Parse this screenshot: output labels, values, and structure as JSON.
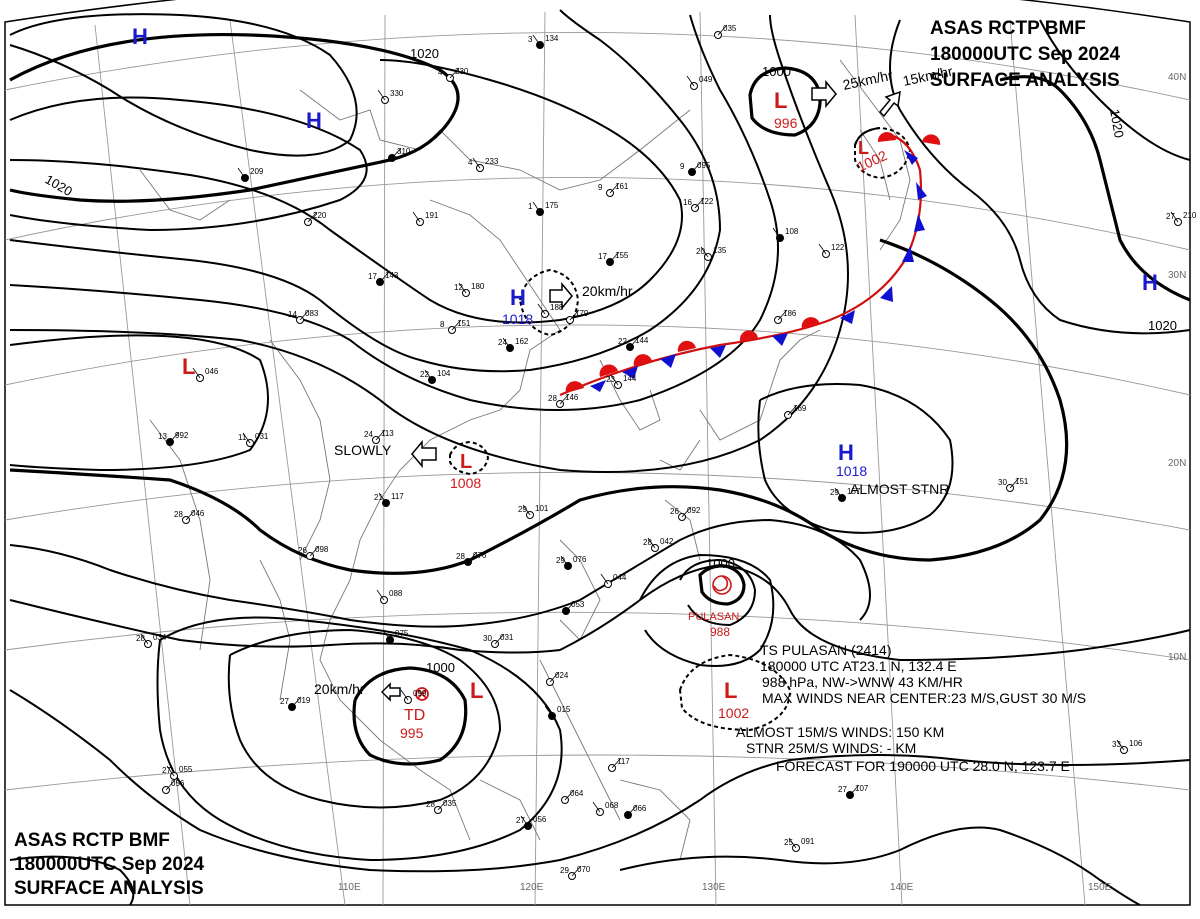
{
  "header_top_right": {
    "line1": "ASAS     RCTP     BMF",
    "line2": "180000UTC     Sep     2024",
    "line3": "SURFACE  ANALYSIS"
  },
  "header_bottom_left": {
    "line1": "ASAS     RCTP     BMF",
    "line2": "180000UTC     Sep     2024",
    "line3": "SURFACE  ANALYSIS"
  },
  "longitude_labels": [
    "110E",
    "120E",
    "130E",
    "140E",
    "150E"
  ],
  "latitude_labels": [
    "40N",
    "30N",
    "20N",
    "10N"
  ],
  "isobar_labels": [
    "1020",
    "1020",
    "1020",
    "1020",
    "1000",
    "1000",
    "1000"
  ],
  "pressure_systems": [
    {
      "type": "H",
      "color": "#1a1acc"
    },
    {
      "type": "H",
      "color": "#1a1acc"
    },
    {
      "type": "H",
      "color": "#1a1acc",
      "value": "1018",
      "motion": "20km/hr"
    },
    {
      "type": "H",
      "color": "#1a1acc",
      "value": "1018",
      "note": "ALMOST STNR"
    },
    {
      "type": "H",
      "color": "#1a1acc"
    },
    {
      "type": "L",
      "color": "#cc1a1a"
    },
    {
      "type": "L",
      "color": "#cc1a1a",
      "value": "1008",
      "motion": "SLOWLY"
    },
    {
      "type": "L",
      "color": "#cc1a1a",
      "value": "996",
      "motion": "25km/hr"
    },
    {
      "type": "L",
      "color": "#cc1a1a",
      "value": "1002",
      "motion": "15km/hr"
    },
    {
      "type": "L",
      "color": "#cc1a1a",
      "value": "1002"
    },
    {
      "type": "L",
      "color": "#cc1a1a"
    },
    {
      "type": "TD",
      "color": "#cc1a1a",
      "value": "995",
      "motion": "20km/hr"
    }
  ],
  "storm": {
    "name": "PULASAN",
    "pressure": "988",
    "info_lines": [
      "TS  PULASAN  (2414)",
      "180000 UTC   AT23.1 N, 132.4 E",
      "988 hPa, NW->WNW  43 KM/HR",
      "MAX WINDS NEAR CENTER:23 M/S,GUST 30 M/S",
      "ALMOST 15M/S WINDS:  150 KM",
      "STNR  25M/S WINDS:  - KM",
      "FORECAST FOR 190000 UTC 28.0 N, 123.7 E"
    ]
  },
  "station_samples": [
    {
      "t": "3",
      "p": "134"
    },
    {
      "t": "4",
      "p": "230"
    },
    {
      "t": "",
      "p": "330"
    },
    {
      "t": "",
      "p": "310"
    },
    {
      "t": "4",
      "p": "233"
    },
    {
      "t": "9",
      "p": "161"
    },
    {
      "t": "1",
      "p": "175"
    },
    {
      "t": "16",
      "p": "122"
    },
    {
      "t": "20",
      "p": "135"
    },
    {
      "t": "17",
      "p": "155"
    },
    {
      "t": "12",
      "p": "180"
    },
    {
      "t": "8",
      "p": "151"
    },
    {
      "t": "22",
      "p": "104"
    },
    {
      "t": "14",
      "p": "083"
    },
    {
      "t": "",
      "p": "046"
    },
    {
      "t": "13",
      "p": "992"
    },
    {
      "t": "11",
      "p": "031"
    },
    {
      "t": "24",
      "p": "113"
    },
    {
      "t": "21",
      "p": "117"
    },
    {
      "t": "28",
      "p": "046"
    },
    {
      "t": "29",
      "p": "101"
    },
    {
      "t": "28",
      "p": "076"
    },
    {
      "t": "28",
      "p": "042"
    },
    {
      "t": "26",
      "p": "092"
    },
    {
      "t": "29",
      "p": "076"
    },
    {
      "t": "30",
      "p": "031"
    },
    {
      "t": "28",
      "p": "034"
    },
    {
      "t": "27",
      "p": "019"
    },
    {
      "t": "27",
      "p": "055"
    },
    {
      "t": "28",
      "p": "035"
    },
    {
      "t": "27",
      "p": "056"
    },
    {
      "t": "29",
      "p": "070"
    },
    {
      "t": "25",
      "p": "091"
    },
    {
      "t": "27",
      "p": "107"
    },
    {
      "t": "33",
      "p": "106"
    },
    {
      "t": "30",
      "p": "151"
    },
    {
      "t": "29",
      "p": "157"
    },
    {
      "t": "",
      "p": "169"
    },
    {
      "t": "27",
      "p": "210"
    },
    {
      "t": "9",
      "p": "095"
    },
    {
      "t": "",
      "p": "049"
    },
    {
      "t": "",
      "p": "035"
    },
    {
      "t": "",
      "p": "108"
    },
    {
      "t": "",
      "p": "186"
    },
    {
      "t": "",
      "p": "122"
    },
    {
      "t": "22",
      "p": "144"
    },
    {
      "t": "23",
      "p": "144"
    },
    {
      "t": "28",
      "p": "146"
    },
    {
      "t": "",
      "p": "209"
    },
    {
      "t": "",
      "p": "220"
    },
    {
      "t": "",
      "p": "191"
    },
    {
      "t": "17",
      "p": "143"
    },
    {
      "t": "",
      "p": "188"
    },
    {
      "t": "",
      "p": "179"
    },
    {
      "t": "24",
      "p": "162"
    },
    {
      "t": "26",
      "p": "098"
    },
    {
      "t": "",
      "p": "088"
    },
    {
      "t": "",
      "p": "053"
    },
    {
      "t": "",
      "p": "044"
    },
    {
      "t": "",
      "p": "024"
    },
    {
      "t": "",
      "p": "015"
    },
    {
      "t": "",
      "p": "064"
    },
    {
      "t": "",
      "p": "068"
    },
    {
      "t": "",
      "p": "066"
    },
    {
      "t": "",
      "p": "099"
    },
    {
      "t": "",
      "p": "117"
    },
    {
      "t": "",
      "p": "075"
    },
    {
      "t": "",
      "p": "056"
    }
  ],
  "colors": {
    "high": "#1a1acc",
    "low": "#cc1a1a",
    "warm_front": "#e01010",
    "cold_front": "#1010d0",
    "isobar": "#000000"
  }
}
